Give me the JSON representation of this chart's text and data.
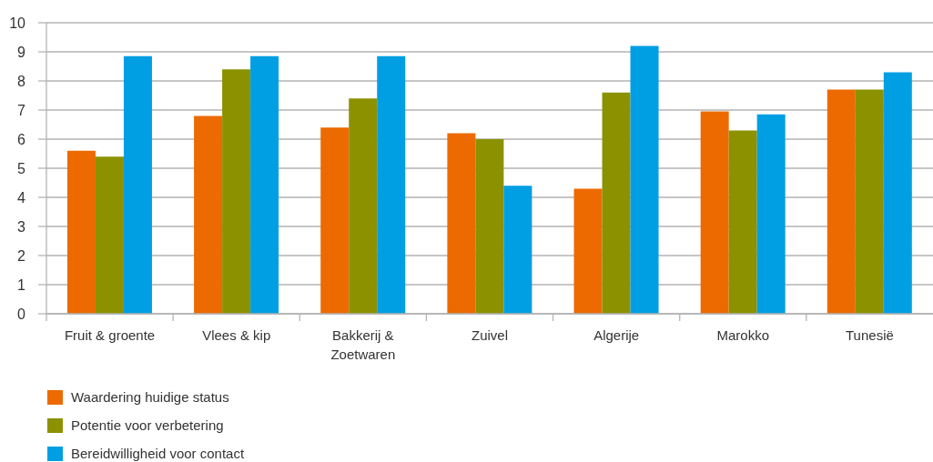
{
  "chart_data": {
    "type": "bar",
    "categories": [
      "Fruit & groente",
      "Vlees & kip",
      "Bakkerij & Zoetwaren",
      "Zuivel",
      "Algerije",
      "Marokko",
      "Tunesië"
    ],
    "series": [
      {
        "name": "Waardering huidige status",
        "color": "#ec6a00",
        "values": [
          5.6,
          6.8,
          6.4,
          6.2,
          4.3,
          6.95,
          7.7
        ]
      },
      {
        "name": "Potentie voor verbetering",
        "color": "#8c9100",
        "values": [
          5.4,
          8.4,
          7.4,
          6.0,
          7.6,
          6.3,
          7.7
        ]
      },
      {
        "name": "Bereidwilligheid voor contact",
        "color": "#009fe3",
        "values": [
          8.85,
          8.85,
          8.85,
          4.4,
          9.2,
          6.85,
          8.3
        ]
      }
    ],
    "ylim": [
      0,
      10
    ],
    "yticks": [
      0,
      1,
      2,
      3,
      4,
      5,
      6,
      7,
      8,
      9,
      10
    ],
    "grid": "y",
    "legend": "bottom left"
  }
}
